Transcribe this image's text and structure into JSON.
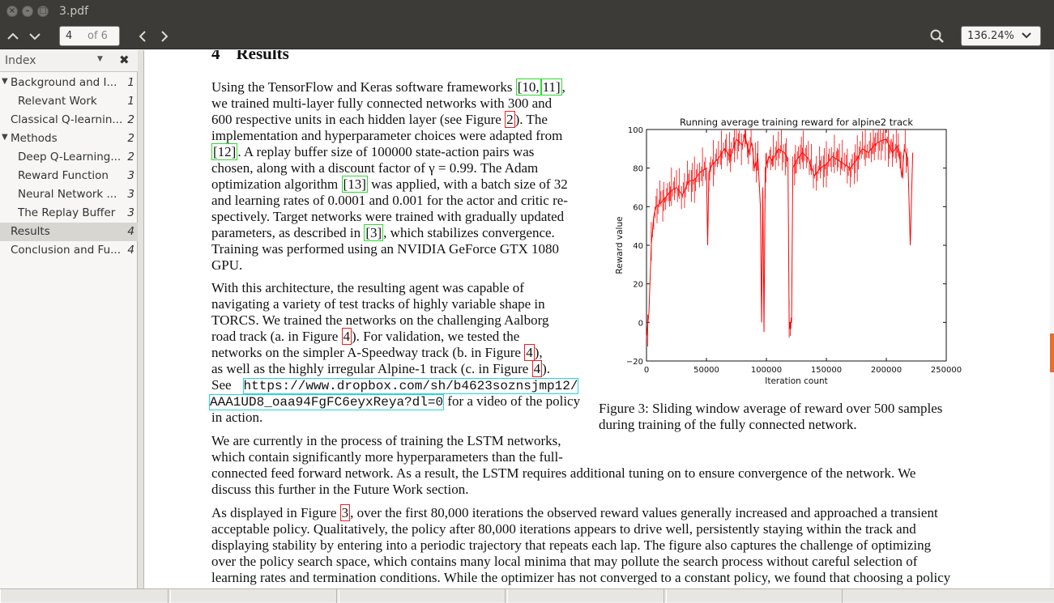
{
  "window": {
    "title": "3.pdf"
  },
  "toolbar": {
    "page_current": "4",
    "page_of": "of 6",
    "zoom": "136.24%"
  },
  "sidebar": {
    "header": "Index",
    "items": [
      {
        "label": "Background and I...",
        "page": "1",
        "level": 0,
        "expander": true,
        "selected": false
      },
      {
        "label": "Relevant Work",
        "page": "1",
        "level": 1,
        "expander": false,
        "selected": false
      },
      {
        "label": "Classical Q-learnin...",
        "page": "2",
        "level": 0,
        "expander": false,
        "selected": false
      },
      {
        "label": "Methods",
        "page": "2",
        "level": 0,
        "expander": true,
        "selected": false
      },
      {
        "label": "Deep Q-Learning...",
        "page": "2",
        "level": 1,
        "expander": false,
        "selected": false
      },
      {
        "label": "Reward Function",
        "page": "3",
        "level": 1,
        "expander": false,
        "selected": false
      },
      {
        "label": "Neural Network ...",
        "page": "3",
        "level": 1,
        "expander": false,
        "selected": false
      },
      {
        "label": "The Replay Buffer",
        "page": "3",
        "level": 1,
        "expander": false,
        "selected": false
      },
      {
        "label": "Results",
        "page": "4",
        "level": 0,
        "expander": false,
        "selected": true
      },
      {
        "label": "Conclusion and Fu...",
        "page": "4",
        "level": 0,
        "expander": false,
        "selected": false
      }
    ]
  },
  "document": {
    "section_number": "4",
    "section_title": "Results",
    "p1": {
      "l1a": "Using the TensorFlow and Keras software frameworks ",
      "ref10": "[10,",
      "ref11": "11]",
      "l1b": ",",
      "l2": "we trained multi-layer fully connected networks with 300 and",
      "l3a": "600 respective units in each hidden layer (see Figure ",
      "fig2": "2",
      "l3b": ").  The",
      "l4": "implementation and hyperparameter choices were adapted from",
      "ref12": "[12]",
      "l5b": ".  A replay buffer size of 100000 state-action pairs was",
      "l6": "chosen, along with a discount factor of γ = 0.99.  The Adam",
      "l7a": "optimization algorithm ",
      "ref13": "[13]",
      "l7b": " was applied, with a batch size of 32",
      "l8": "and learning rates of 0.0001 and 0.001 for the actor and critic re-",
      "l9": "spectively. Target networks were trained with gradually updated",
      "l10a": "parameters, as described in ",
      "ref3": "[3]",
      "l10b": ", which stabilizes convergence.",
      "l11": "Training was performed using an NVIDIA GeForce GTX 1080",
      "l12": "GPU."
    },
    "p2": {
      "l1": "With this architecture, the resulting agent was capable of",
      "l2": "navigating a variety of test tracks of highly variable shape in",
      "l3": "TORCS. We trained the networks on the challenging Aalborg",
      "l4a": "road track (a.  in Figure ",
      "fig4a": "4",
      "l4b": ").  For validation, we tested the",
      "l5a": "networks on the simpler A-Speedway track (b.  in Figure ",
      "fig4b": "4",
      "l5b": "),",
      "l6a": "as well as the highly irregular Alpine-1 track (c. in Figure ",
      "fig4c": "4",
      "l6b": ").",
      "l7a": "See",
      "url1": "https://www.dropbox.com/sh/b4623soznsjmp12/",
      "url2": "AAA1UD8_oaa94FgFC6eyxReya?dl=0",
      "l8b": " for a video of the policy",
      "l9": "in action."
    },
    "p3": {
      "l1": "We are currently in the process of training the LSTM networks,",
      "l2": "which contain significantly more hyperparameters than the full-",
      "l3": "connected feed forward network. As a result, the LSTM requires additional tuning on to ensure convergence of the network. We",
      "l4": "discuss this further in the Future Work section."
    },
    "p4": {
      "l1a": "As displayed in Figure ",
      "fig3": "3",
      "l1b": ", over the first 80,000 iterations the observed reward values generally increased and approached a transient",
      "l2": "acceptable policy.  Qualitatively, the policy after 80,000 iterations appears to drive well, persistently staying within the track and",
      "l3": "displaying stability by entering into a periodic trajectory that repeats each lap. The figure also captures the challenge of optimizing",
      "l4": "over the policy search space, which contains many local minima that may pollute the search process without careful selection of",
      "l5": "learning rates and termination conditions.  While the optimizer has not converged to a constant policy, we found that choosing a policy"
    },
    "caption": {
      "l1": "Figure 3:  Sliding window average of reward over 500 samples",
      "l2": "during training of the fully connected network."
    }
  },
  "chart_data": {
    "type": "line",
    "title": "Running average training reward for alpine2 track",
    "xlabel": "Iteration count",
    "ylabel": "Reward value",
    "xlim": [
      0,
      250000
    ],
    "ylim": [
      -20,
      100
    ],
    "xticks": [
      "0",
      "50000",
      "100000",
      "150000",
      "200000",
      "250000"
    ],
    "yticks": [
      "−20",
      "0",
      "20",
      "40",
      "60",
      "80",
      "100"
    ],
    "grid": false,
    "color": "#ff0000",
    "series": [
      {
        "x": [
          0,
          2000,
          4000,
          6000,
          8000,
          12000,
          16000,
          20000,
          25000,
          30000,
          35000,
          40000,
          45000,
          50000,
          51000,
          52000,
          55000,
          60000,
          65000,
          70000,
          75000,
          80000,
          82000,
          85000,
          88000,
          90000,
          93000,
          95000,
          96000,
          97000,
          98000,
          99000,
          100000,
          102000,
          105000,
          110000,
          115000,
          118000,
          119000,
          120000,
          121000,
          122000,
          125000,
          130000,
          135000,
          140000,
          145000,
          150000,
          155000,
          160000,
          165000,
          170000,
          175000,
          180000,
          185000,
          190000,
          195000,
          200000,
          205000,
          210000,
          213000,
          215000,
          218000,
          220000,
          222000
        ],
        "y": [
          -8,
          5,
          40,
          55,
          60,
          62,
          65,
          68,
          70,
          66,
          73,
          74,
          78,
          80,
          40,
          78,
          82,
          85,
          90,
          86,
          95,
          92,
          98,
          88,
          93,
          80,
          85,
          60,
          0,
          70,
          -5,
          75,
          82,
          86,
          84,
          90,
          88,
          85,
          0,
          0,
          0,
          80,
          84,
          88,
          85,
          76,
          80,
          82,
          86,
          84,
          82,
          80,
          84,
          90,
          88,
          92,
          94,
          95,
          88,
          92,
          75,
          90,
          85,
          40,
          88
        ]
      }
    ]
  }
}
